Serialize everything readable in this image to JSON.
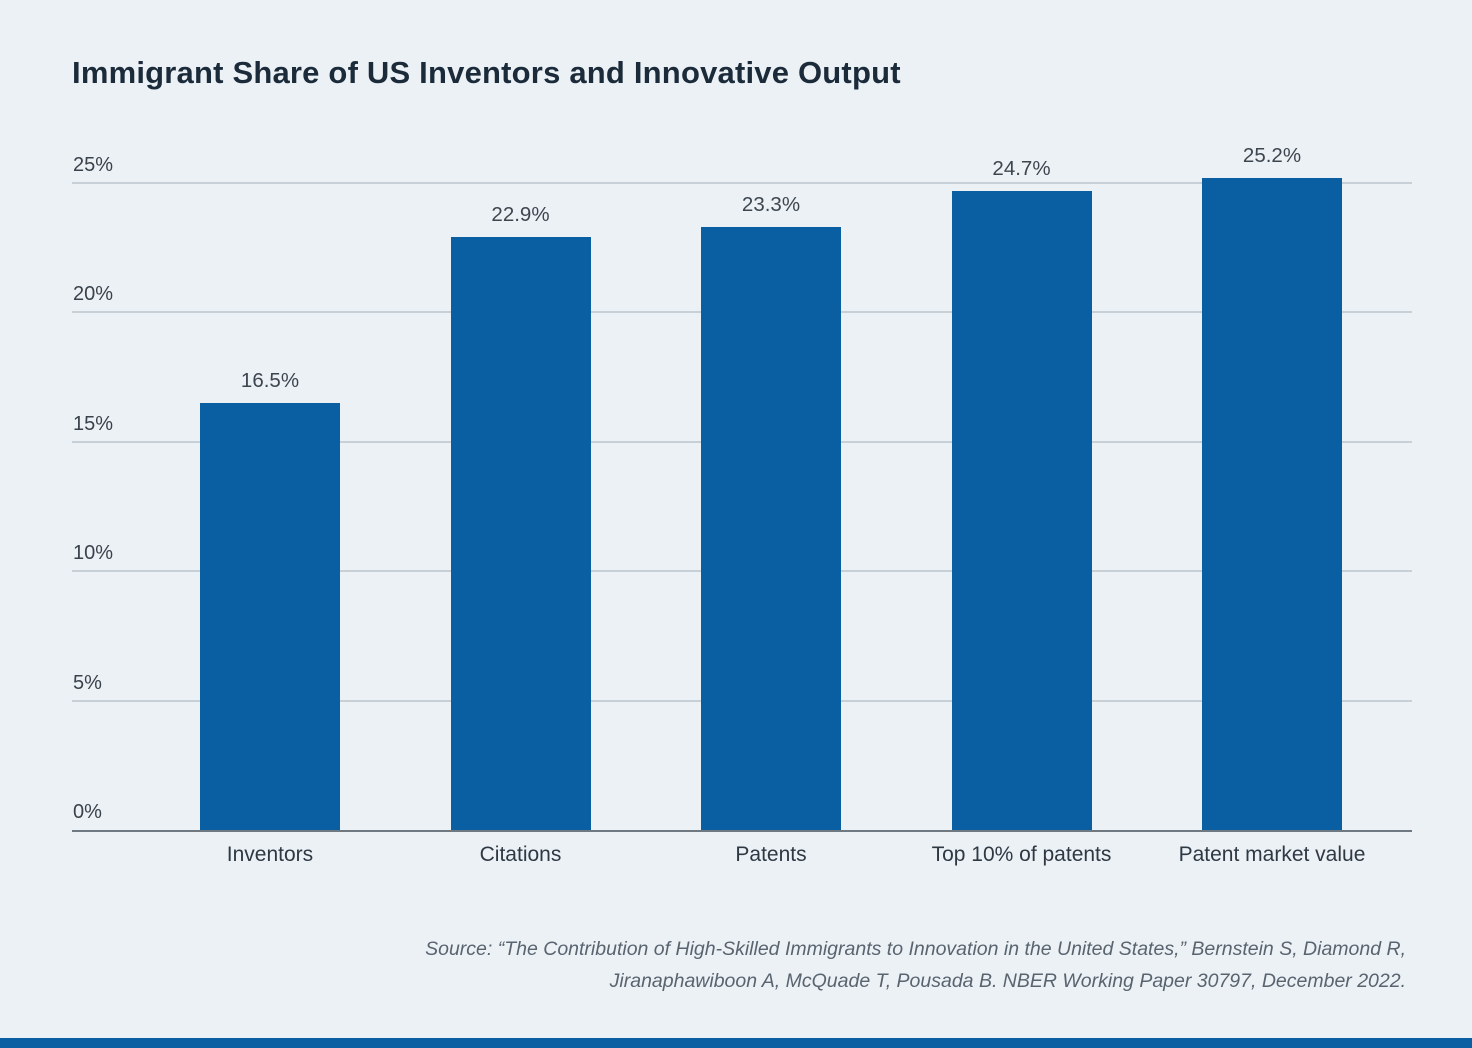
{
  "page": {
    "background": "#ecf1f6",
    "accent_bar_color": "#0a5ea2"
  },
  "chart_data": {
    "type": "bar",
    "title": "Immigrant Share of US Inventors and Innovative Output",
    "categories": [
      "Inventors",
      "Citations",
      "Patents",
      "Top 10% of patents",
      "Patent market value"
    ],
    "values": [
      16.5,
      22.9,
      23.3,
      24.7,
      25.2
    ],
    "value_labels": [
      "16.5%",
      "22.9%",
      "23.3%",
      "24.7%",
      "25.2%"
    ],
    "xlabel": "",
    "ylabel": "",
    "ylim": [
      0,
      25
    ],
    "ytick_interval": 5,
    "ytick_labels": [
      "0%",
      "5%",
      "10%",
      "15%",
      "20%",
      "25%"
    ],
    "grid": true,
    "legend": "none",
    "bar_color": "#0a5ea2",
    "title_color": "#1b2b3a",
    "gridline_color": "#c8d0d7",
    "axis_line_color": "#6f7982"
  },
  "source": {
    "line1": "Source: “The Contribution of High-Skilled Immigrants to Innovation in the United States,” Bernstein S, Diamond R,",
    "line2": "Jiranaphawiboon A, McQuade T, Pousada B. NBER Working Paper 30797, December 2022."
  }
}
